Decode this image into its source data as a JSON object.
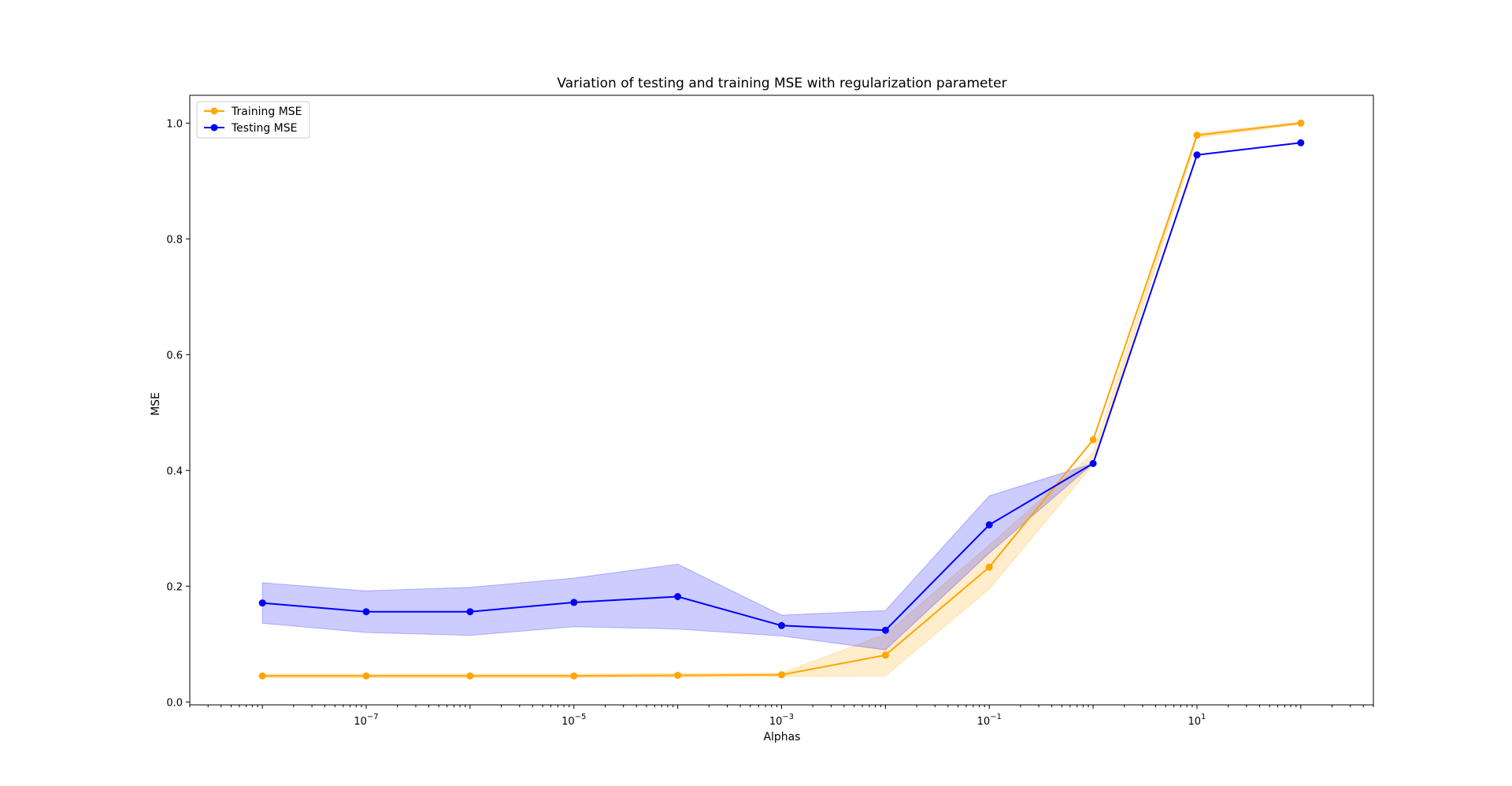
{
  "chart_data": {
    "type": "line",
    "title": "Variation of testing and training MSE with regularization parameter",
    "xlabel": "Alphas",
    "ylabel": "MSE",
    "xscale": "log",
    "x": [
      1e-08,
      1e-07,
      1e-06,
      1e-05,
      0.0001,
      0.001,
      0.01,
      0.1,
      1,
      10,
      100
    ],
    "xlim": [
      2e-09,
      500
    ],
    "ylim": [
      -0.005,
      1.048
    ],
    "x_ticks": [
      {
        "value": 1e-07,
        "base": "10",
        "exp": "−7"
      },
      {
        "value": 1e-05,
        "base": "10",
        "exp": "−5"
      },
      {
        "value": 0.001,
        "base": "10",
        "exp": "−3"
      },
      {
        "value": 0.1,
        "base": "10",
        "exp": "−1"
      },
      {
        "value": 10,
        "base": "10",
        "exp": "1"
      }
    ],
    "y_ticks": [
      "0.0",
      "0.2",
      "0.4",
      "0.6",
      "0.8",
      "1.0"
    ],
    "grid": false,
    "legend_position": "top-left",
    "series": [
      {
        "name": "Training MSE",
        "color": "#ffa500",
        "band_color": "#ffa500",
        "values": [
          0.045,
          0.045,
          0.045,
          0.045,
          0.046,
          0.047,
          0.081,
          0.233,
          0.453,
          0.979,
          1.0
        ],
        "lower": [
          0.042,
          0.042,
          0.042,
          0.042,
          0.043,
          0.044,
          0.045,
          0.195,
          0.41,
          0.975,
          0.998
        ],
        "upper": [
          0.048,
          0.048,
          0.048,
          0.048,
          0.049,
          0.05,
          0.117,
          0.271,
          0.43,
          0.982,
          1.002
        ]
      },
      {
        "name": "Testing MSE",
        "color": "#0000ff",
        "band_color": "#0000ff",
        "values": [
          0.171,
          0.156,
          0.156,
          0.172,
          0.182,
          0.132,
          0.124,
          0.306,
          0.412,
          0.945,
          0.966
        ],
        "lower": [
          0.136,
          0.12,
          0.115,
          0.13,
          0.126,
          0.114,
          0.09,
          0.257,
          0.412,
          0.945,
          0.966
        ],
        "upper": [
          0.206,
          0.192,
          0.198,
          0.214,
          0.238,
          0.15,
          0.158,
          0.356,
          0.412,
          0.945,
          0.966
        ]
      }
    ]
  }
}
